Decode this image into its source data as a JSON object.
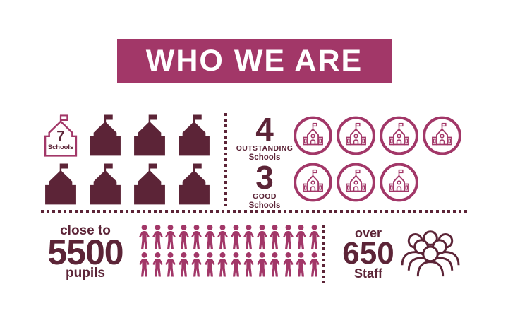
{
  "colors": {
    "accent": "#A23768",
    "dark": "#5C2437",
    "background": "#FFFFFF",
    "banner_text": "#FFFFFF"
  },
  "header": {
    "title": "WHO WE ARE"
  },
  "chart_data": {
    "type": "pictogram-infographic",
    "title": "WHO WE ARE",
    "stats": [
      {
        "metric": "Schools",
        "value": 7,
        "icons_shown": 8,
        "note": "first icon outlined containing label"
      },
      {
        "metric": "OUTSTANDING Schools",
        "value": 4,
        "icons_shown": 4
      },
      {
        "metric": "GOOD Schools",
        "value": 3,
        "icons_shown": 3
      },
      {
        "metric": "pupils",
        "value": 5500,
        "qualifier": "close to",
        "icons_shown": 28
      },
      {
        "metric": "Staff",
        "value": 650,
        "qualifier": "over",
        "icons_shown": 1
      }
    ]
  },
  "schools": {
    "count": "7",
    "label": "Schools",
    "filled_icons": 7
  },
  "ratings": [
    {
      "count": "4",
      "rating": "OUTSTANDING",
      "label": "Schools",
      "icon_count": 4
    },
    {
      "count": "3",
      "rating": "GOOD",
      "label": "Schools",
      "icon_count": 3
    }
  ],
  "pupils": {
    "qualifier": "close to",
    "count": "5500",
    "label": "pupils",
    "icon_rows": 2,
    "icons_per_row": 14
  },
  "staff": {
    "qualifier": "over",
    "count": "650",
    "label": "Staff"
  },
  "icons": {
    "school": "school-building-icon",
    "school_badge": "school-in-circle-icon",
    "pupil": "person-icon",
    "staff": "people-group-icon"
  }
}
